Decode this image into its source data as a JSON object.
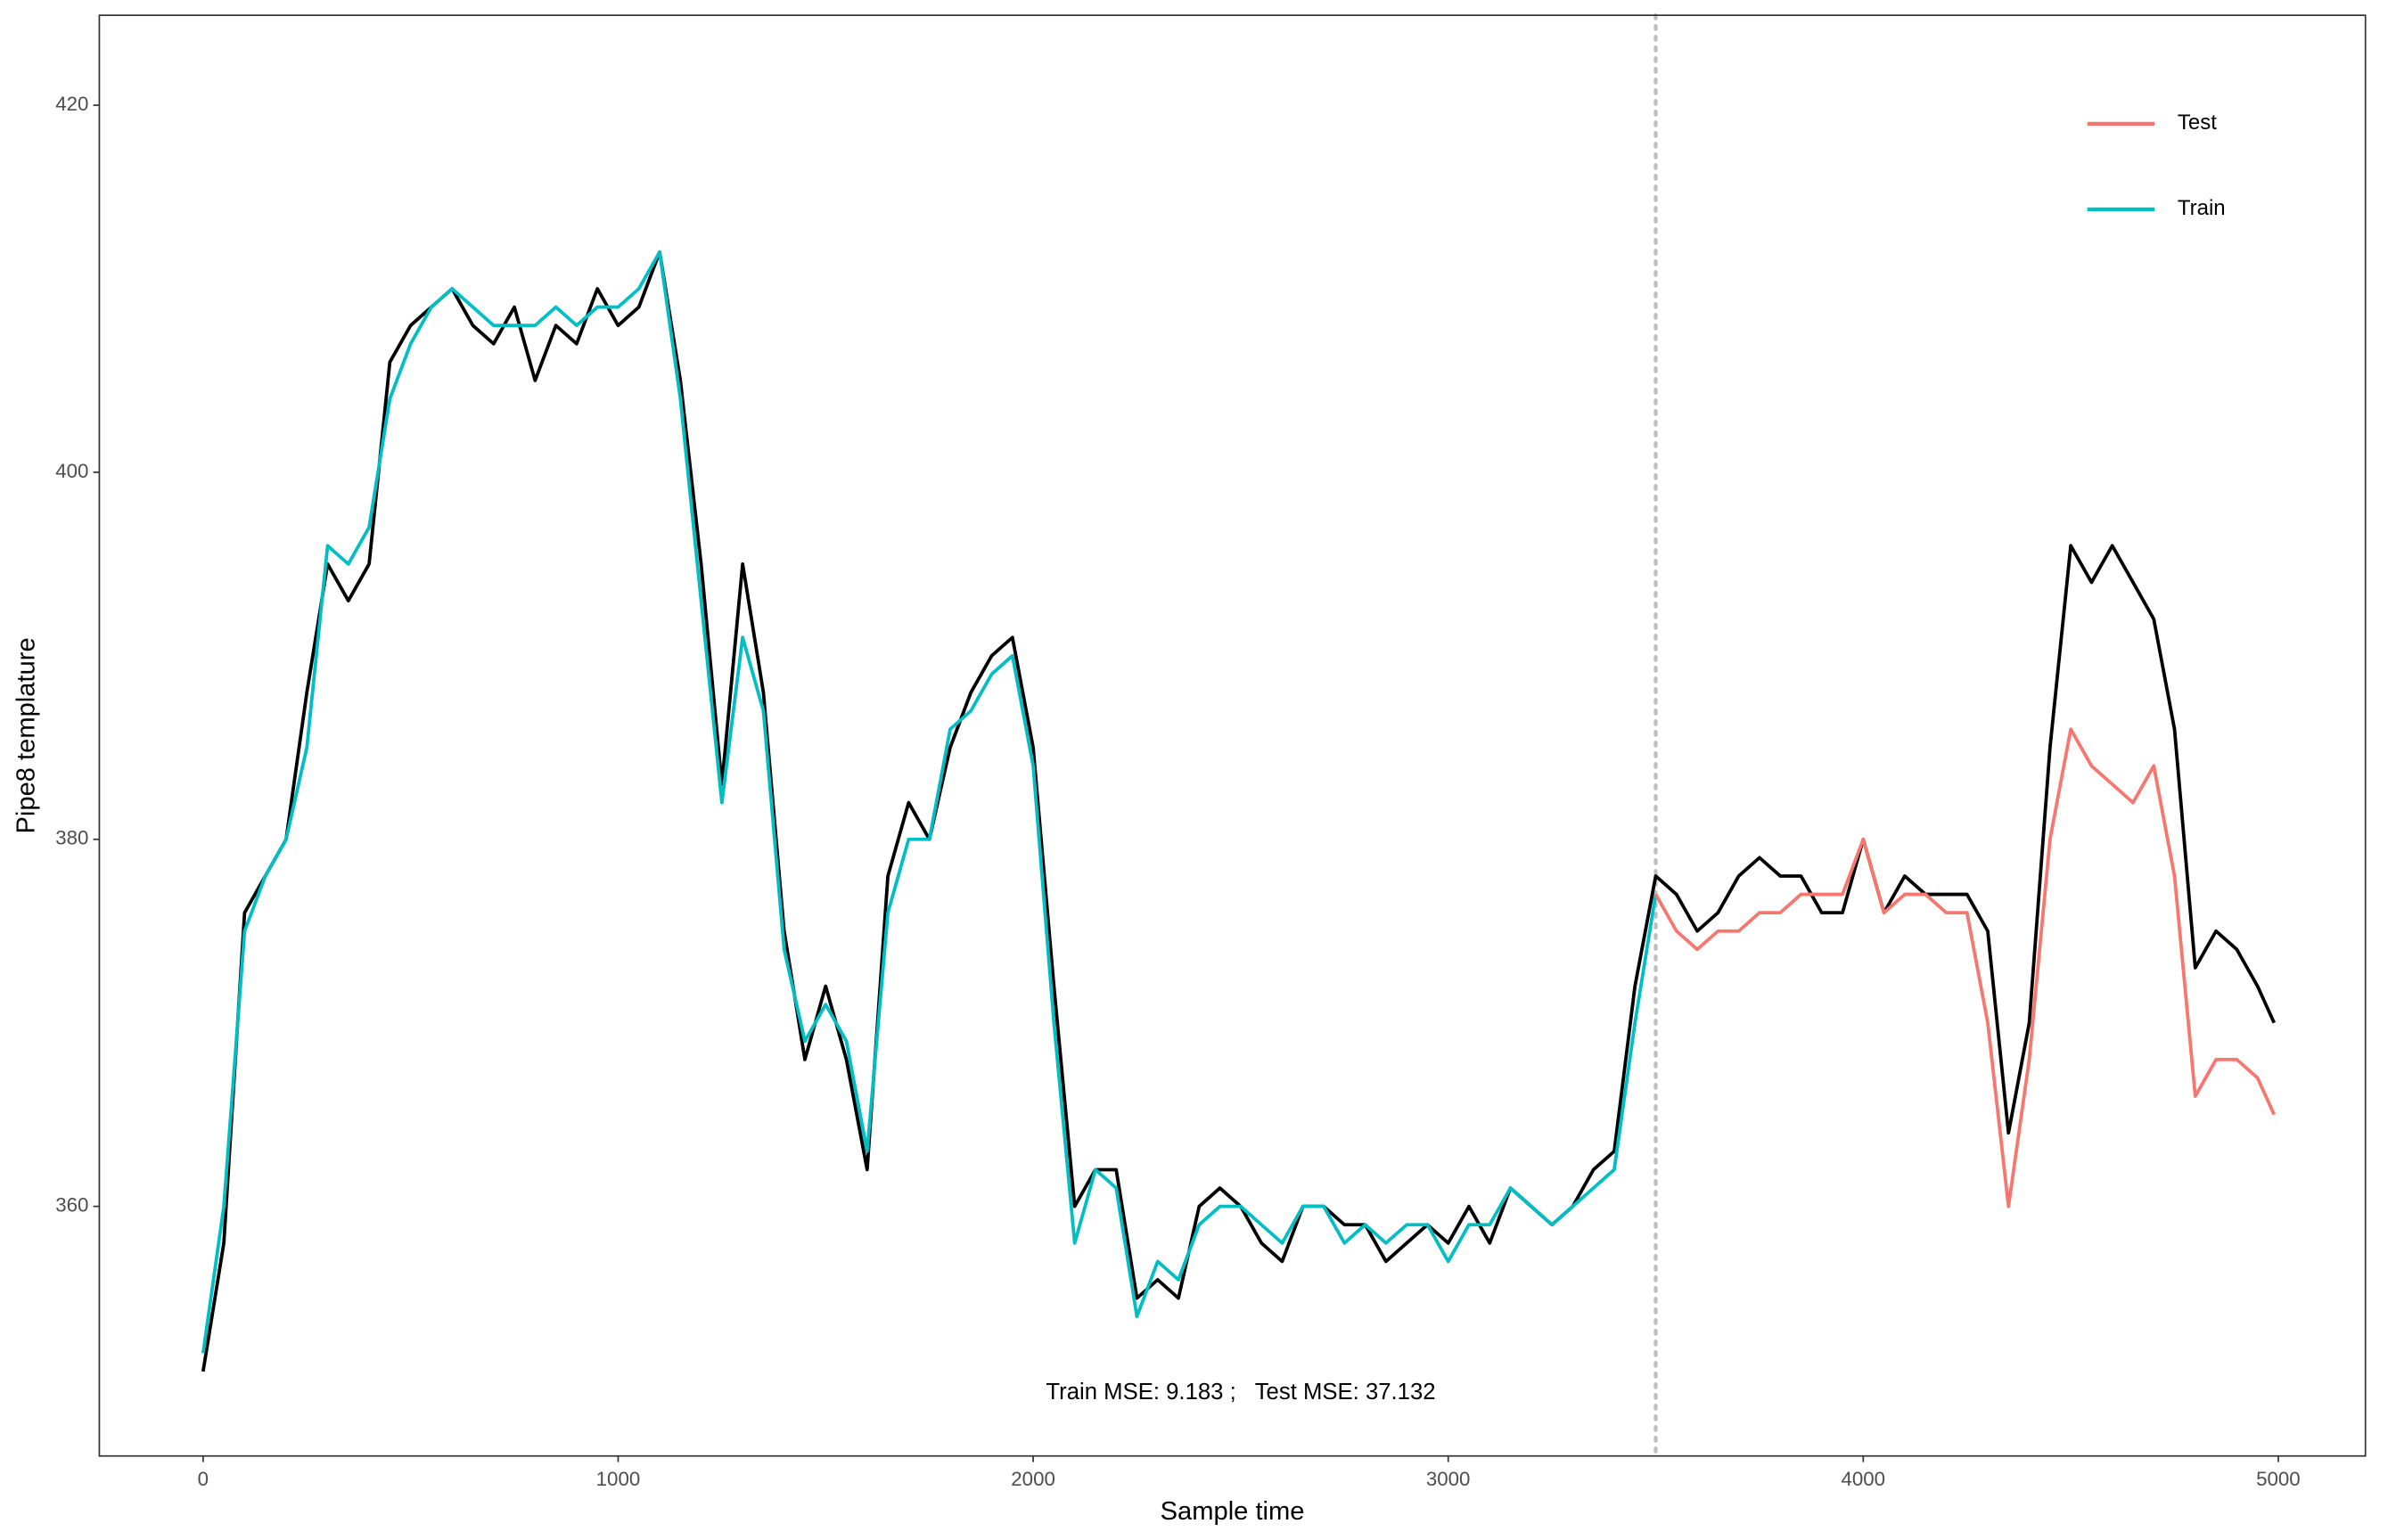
{
  "chart_data": {
    "type": "line",
    "x_label": "Sample time",
    "y_label": "Pipe8 templature",
    "annotation": "Train MSE: 9.183 ;   Test MSE: 37.132",
    "xlim": [
      -250,
      5210
    ],
    "ylim": [
      346.4,
      424.9
    ],
    "xticks": [
      0,
      1000,
      2000,
      3000,
      4000,
      5000
    ],
    "yticks": [
      360,
      380,
      400,
      420
    ],
    "grid": false,
    "legend_position": "top-right",
    "reference_line": {
      "x": 3500,
      "color": "#bebebe"
    },
    "x": [
      0,
      50,
      100,
      150,
      200,
      250,
      300,
      350,
      400,
      450,
      500,
      550,
      600,
      650,
      700,
      750,
      800,
      850,
      900,
      950,
      1000,
      1050,
      1100,
      1150,
      1200,
      1250,
      1300,
      1350,
      1400,
      1450,
      1500,
      1550,
      1600,
      1650,
      1700,
      1750,
      1800,
      1850,
      1900,
      1950,
      2000,
      2050,
      2100,
      2150,
      2200,
      2250,
      2300,
      2350,
      2400,
      2450,
      2500,
      2550,
      2600,
      2650,
      2700,
      2750,
      2800,
      2850,
      2900,
      2950,
      3000,
      3050,
      3100,
      3150,
      3200,
      3250,
      3300,
      3350,
      3400,
      3450,
      3500,
      3550,
      3600,
      3650,
      3700,
      3750,
      3800,
      3850,
      3900,
      3950,
      4000,
      4050,
      4100,
      4150,
      4200,
      4250,
      4300,
      4350,
      4400,
      4450,
      4500,
      4550,
      4600,
      4650,
      4700,
      4750,
      4800,
      4850,
      4900,
      4950,
      4990
    ],
    "series": [
      {
        "color": "#000000",
        "values": [
          351,
          358,
          376,
          378,
          380,
          388,
          395,
          393,
          395,
          406,
          408,
          409,
          410,
          408,
          407,
          409,
          405,
          408,
          407,
          410,
          408,
          409,
          412,
          405,
          395,
          383,
          395,
          388,
          375,
          368,
          372,
          368,
          362,
          378,
          382,
          380,
          385,
          388,
          390,
          391,
          385,
          372,
          360,
          362,
          362,
          355,
          356,
          355,
          360,
          361,
          360,
          358,
          357,
          360,
          360,
          359,
          359,
          357,
          358,
          359,
          358,
          360,
          358,
          361,
          360,
          359,
          360,
          362,
          363,
          372,
          378,
          377,
          375,
          376,
          378,
          379,
          378,
          378,
          376,
          376,
          380,
          376,
          378,
          377,
          377,
          377,
          375,
          364,
          370,
          385,
          396,
          394,
          396,
          394,
          392,
          386,
          373,
          375,
          374,
          372,
          370
        ]
      },
      {
        "name": "Train",
        "color": "#00BFC4",
        "values": [
          352,
          360,
          375,
          378,
          380,
          385,
          396,
          395,
          397,
          404,
          407,
          409,
          410,
          409,
          408,
          408,
          408,
          409,
          408,
          409,
          409,
          410,
          412,
          404,
          393,
          382,
          391,
          387,
          374,
          369,
          371,
          369,
          363,
          376,
          380,
          380,
          386,
          387,
          389,
          390,
          384,
          370,
          358,
          362,
          361,
          354,
          357,
          356,
          359,
          360,
          360,
          359,
          358,
          360,
          360,
          358,
          359,
          358,
          359,
          359,
          357,
          359,
          359,
          361,
          360,
          359,
          360,
          361,
          362,
          370,
          377,
          null,
          null,
          null,
          null,
          null,
          null,
          null,
          null,
          null,
          null,
          null,
          null,
          null,
          null,
          null,
          null,
          null,
          null,
          null,
          null,
          null,
          null,
          null,
          null,
          null,
          null,
          null,
          null,
          null,
          null
        ]
      },
      {
        "name": "Test",
        "color": "#F8766D",
        "values": [
          null,
          null,
          null,
          null,
          null,
          null,
          null,
          null,
          null,
          null,
          null,
          null,
          null,
          null,
          null,
          null,
          null,
          null,
          null,
          null,
          null,
          null,
          null,
          null,
          null,
          null,
          null,
          null,
          null,
          null,
          null,
          null,
          null,
          null,
          null,
          null,
          null,
          null,
          null,
          null,
          null,
          null,
          null,
          null,
          null,
          null,
          null,
          null,
          null,
          null,
          null,
          null,
          null,
          null,
          null,
          null,
          null,
          null,
          null,
          null,
          null,
          null,
          null,
          null,
          null,
          null,
          null,
          null,
          null,
          null,
          377,
          375,
          374,
          375,
          375,
          376,
          376,
          377,
          377,
          377,
          380,
          376,
          377,
          377,
          376,
          376,
          370,
          360,
          368,
          380,
          386,
          384,
          383,
          382,
          384,
          378,
          366,
          368,
          368,
          367,
          365
        ]
      }
    ],
    "legend_order": [
      2,
      1
    ]
  }
}
